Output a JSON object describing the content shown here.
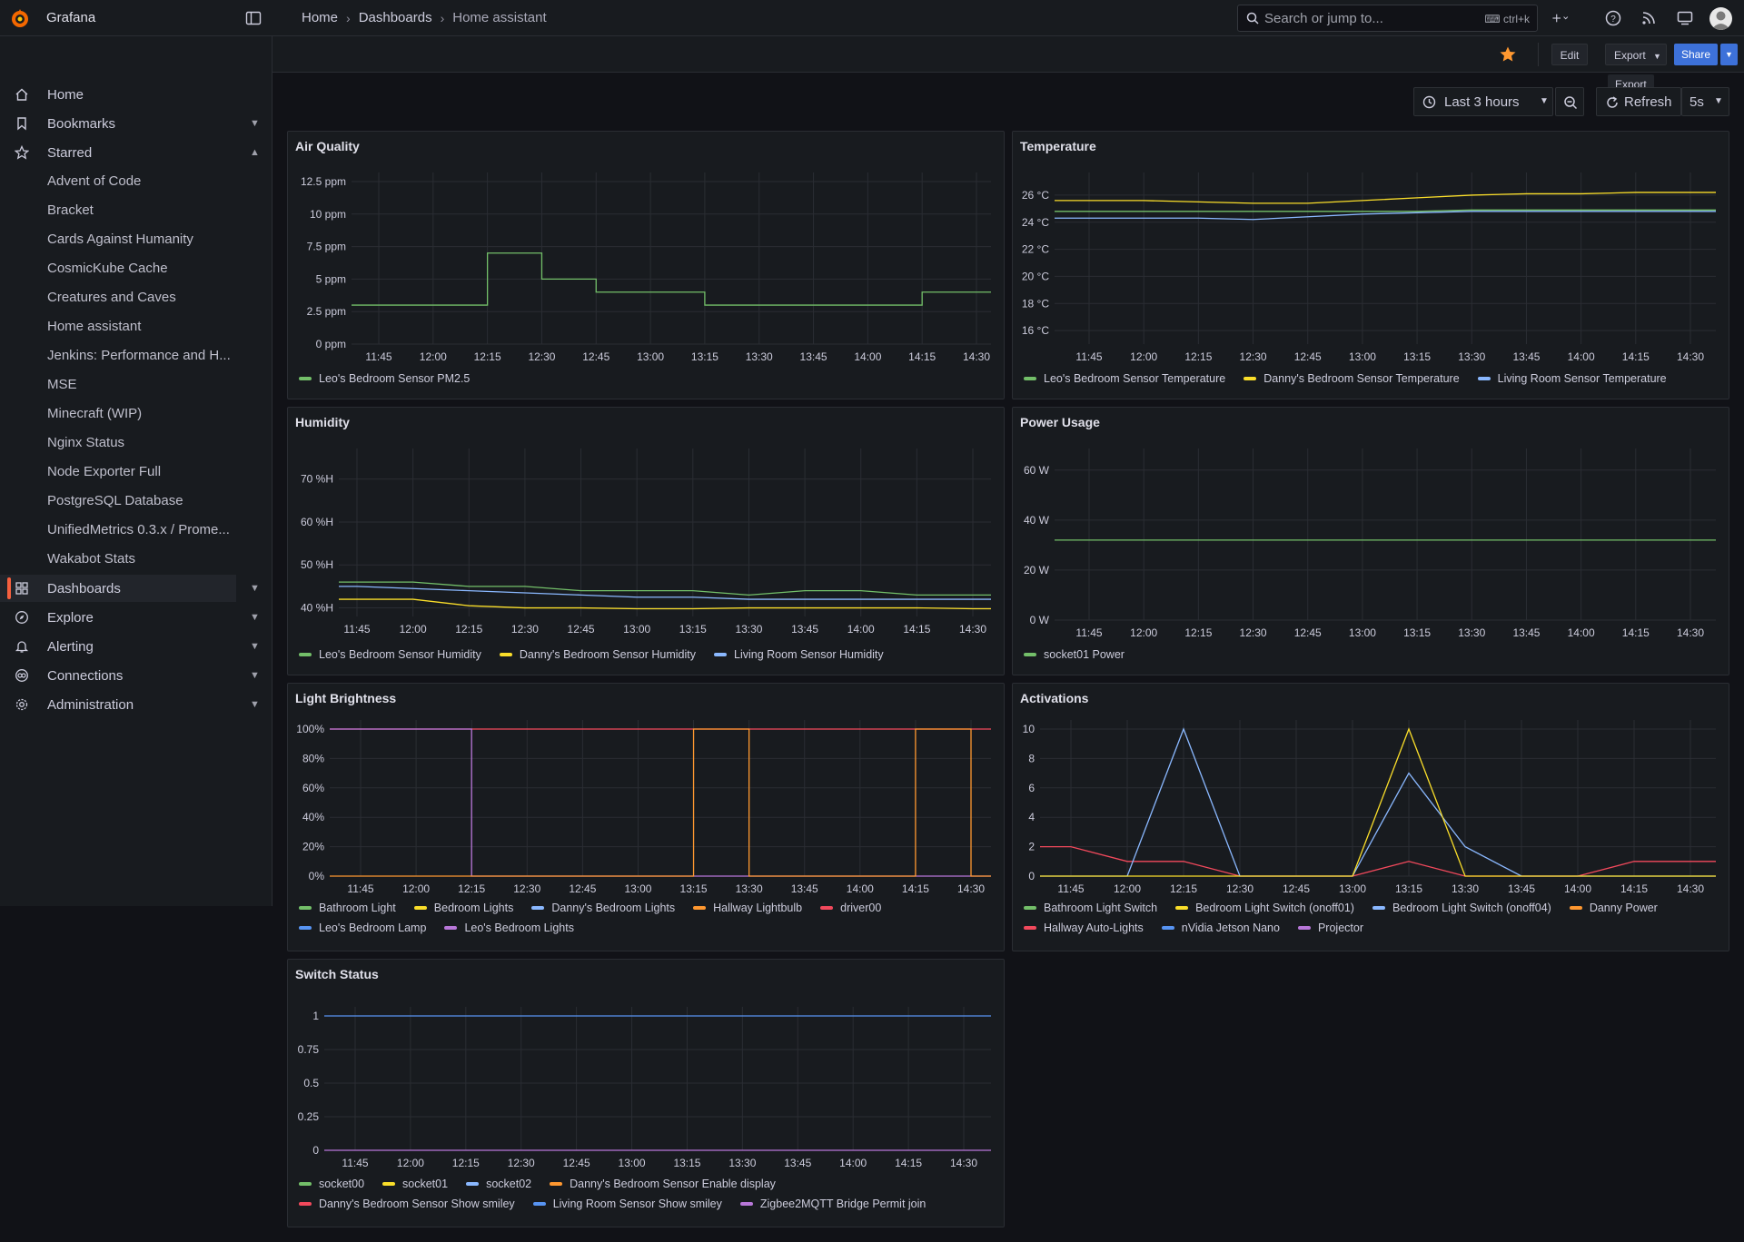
{
  "app": {
    "name": "Grafana",
    "search_placeholder": "Search or jump to...",
    "search_shortcut": "ctrl+k"
  },
  "breadcrumb": [
    "Home",
    "Dashboards",
    "Home assistant"
  ],
  "toolbar": {
    "edit": "Edit",
    "export": "Export",
    "share": "Share",
    "tooltip": "Export",
    "time_range": "Last 3 hours",
    "refresh": "Refresh",
    "interval": "5s"
  },
  "sidebar": {
    "top_items": [
      {
        "label": "Home",
        "icon": "home-icon"
      },
      {
        "label": "Bookmarks",
        "icon": "bookmark-icon"
      },
      {
        "label": "Starred",
        "icon": "star-icon"
      }
    ],
    "starred": [
      "Advent of Code",
      "Bracket",
      "Cards Against Humanity",
      "CosmicKube Cache",
      "Creatures and Caves",
      "Home assistant",
      "Jenkins: Performance and H...",
      "MSE",
      "Minecraft (WIP)",
      "Nginx Status",
      "Node Exporter Full",
      "PostgreSQL Database",
      "UnifiedMetrics 0.3.x / Prome...",
      "Wakabot Stats"
    ],
    "bottom_items": [
      {
        "label": "Dashboards",
        "icon": "dashboards-icon"
      },
      {
        "label": "Explore",
        "icon": "compass-icon"
      },
      {
        "label": "Alerting",
        "icon": "bell-icon"
      },
      {
        "label": "Connections",
        "icon": "connections-icon"
      },
      {
        "label": "Administration",
        "icon": "gear-icon"
      }
    ]
  },
  "colors": {
    "green": "#73bf69",
    "yellow": "#fade2a",
    "lightblue": "#8ab8ff",
    "orange": "#ff9830",
    "red": "#f2495c",
    "blue": "#5794f2",
    "purple": "#b877d9"
  },
  "time_ticks": [
    "11:45",
    "12:00",
    "12:15",
    "12:30",
    "12:45",
    "13:00",
    "13:15",
    "13:30",
    "13:45",
    "14:00",
    "14:15",
    "14:30"
  ],
  "panels": {
    "air_quality": {
      "title": "Air Quality",
      "y_ticks": [
        "12.5 ppm",
        "10 ppm",
        "7.5 ppm",
        "5 ppm",
        "2.5 ppm",
        "0 ppm"
      ],
      "legend": [
        {
          "name": "Leo's Bedroom Sensor PM2.5",
          "color": "#73bf69"
        }
      ]
    },
    "temperature": {
      "title": "Temperature",
      "y_ticks": [
        "26 °C",
        "24 °C",
        "22 °C",
        "20 °C",
        "18 °C",
        "16 °C"
      ],
      "legend": [
        {
          "name": "Leo's Bedroom Sensor Temperature",
          "color": "#73bf69"
        },
        {
          "name": "Danny's Bedroom Sensor Temperature",
          "color": "#fade2a"
        },
        {
          "name": "Living Room Sensor Temperature",
          "color": "#8ab8ff"
        }
      ]
    },
    "humidity": {
      "title": "Humidity",
      "y_ticks": [
        "70 %H",
        "60 %H",
        "50 %H",
        "40 %H"
      ],
      "legend": [
        {
          "name": "Leo's Bedroom Sensor Humidity",
          "color": "#73bf69"
        },
        {
          "name": "Danny's Bedroom Sensor Humidity",
          "color": "#fade2a"
        },
        {
          "name": "Living Room Sensor Humidity",
          "color": "#8ab8ff"
        }
      ]
    },
    "power": {
      "title": "Power Usage",
      "y_ticks": [
        "60 W",
        "40 W",
        "20 W",
        "0 W"
      ],
      "legend": [
        {
          "name": "socket01 Power",
          "color": "#73bf69"
        }
      ]
    },
    "light": {
      "title": "Light Brightness",
      "y_ticks": [
        "100%",
        "80%",
        "60%",
        "40%",
        "20%",
        "0%"
      ],
      "legend": [
        {
          "name": "Bathroom Light",
          "color": "#73bf69"
        },
        {
          "name": "Bedroom Lights",
          "color": "#fade2a"
        },
        {
          "name": "Danny's Bedroom Lights",
          "color": "#8ab8ff"
        },
        {
          "name": "Hallway Lightbulb",
          "color": "#ff9830"
        },
        {
          "name": "driver00",
          "color": "#f2495c"
        },
        {
          "name": "Leo's Bedroom Lamp",
          "color": "#5794f2"
        },
        {
          "name": "Leo's Bedroom Lights",
          "color": "#b877d9"
        }
      ]
    },
    "activations": {
      "title": "Activations",
      "y_ticks": [
        "10",
        "8",
        "6",
        "4",
        "2",
        "0"
      ],
      "legend": [
        {
          "name": "Bathroom Light Switch",
          "color": "#73bf69"
        },
        {
          "name": "Bedroom Light Switch (onoff01)",
          "color": "#fade2a"
        },
        {
          "name": "Bedroom Light Switch (onoff04)",
          "color": "#8ab8ff"
        },
        {
          "name": "Danny Power",
          "color": "#ff9830"
        },
        {
          "name": "Hallway Auto-Lights",
          "color": "#f2495c"
        },
        {
          "name": "nVidia Jetson Nano",
          "color": "#5794f2"
        },
        {
          "name": "Projector",
          "color": "#b877d9"
        }
      ]
    },
    "switch": {
      "title": "Switch Status",
      "y_ticks": [
        "1",
        "0.75",
        "0.5",
        "0.25",
        "0"
      ],
      "legend": [
        {
          "name": "socket00",
          "color": "#73bf69"
        },
        {
          "name": "socket01",
          "color": "#fade2a"
        },
        {
          "name": "socket02",
          "color": "#8ab8ff"
        },
        {
          "name": "Danny's Bedroom Sensor Enable display",
          "color": "#ff9830"
        },
        {
          "name": "Danny's Bedroom Sensor Show smiley",
          "color": "#f2495c"
        },
        {
          "name": "Living Room Sensor Show smiley",
          "color": "#5794f2"
        },
        {
          "name": "Zigbee2MQTT Bridge Permit join",
          "color": "#b877d9"
        }
      ]
    }
  },
  "chart_data": [
    {
      "type": "line",
      "title": "Air Quality",
      "ylabel": "ppm",
      "ylim": [
        0,
        12.5
      ],
      "categories": [
        "11:45",
        "12:00",
        "12:15",
        "12:30",
        "12:45",
        "13:00",
        "13:15",
        "13:30",
        "13:45",
        "14:00",
        "14:15",
        "14:30"
      ],
      "series": [
        {
          "name": "Leo's Bedroom Sensor PM2.5",
          "values": [
            3,
            3,
            7,
            5,
            4,
            4,
            3,
            3,
            3,
            3,
            4,
            4
          ]
        }
      ]
    },
    {
      "type": "line",
      "title": "Temperature",
      "ylabel": "°C",
      "ylim": [
        15,
        27
      ],
      "categories": [
        "11:45",
        "12:00",
        "12:15",
        "12:30",
        "12:45",
        "13:00",
        "13:15",
        "13:30",
        "13:45",
        "14:00",
        "14:15",
        "14:30"
      ],
      "series": [
        {
          "name": "Leo's Bedroom Sensor Temperature",
          "values": [
            24.8,
            24.8,
            24.8,
            24.8,
            24.8,
            24.8,
            24.8,
            24.9,
            24.9,
            24.9,
            24.9,
            24.9
          ]
        },
        {
          "name": "Danny's Bedroom Sensor Temperature",
          "values": [
            25.6,
            25.6,
            25.5,
            25.4,
            25.4,
            25.6,
            25.8,
            26.0,
            26.1,
            26.1,
            26.2,
            26.2
          ]
        },
        {
          "name": "Living Room Sensor Temperature",
          "values": [
            24.3,
            24.3,
            24.3,
            24.2,
            24.4,
            24.6,
            24.7,
            24.8,
            24.8,
            24.8,
            24.8,
            24.8
          ]
        }
      ]
    },
    {
      "type": "line",
      "title": "Humidity",
      "ylabel": "%H",
      "ylim": [
        38,
        75
      ],
      "categories": [
        "11:45",
        "12:00",
        "12:15",
        "12:30",
        "12:45",
        "13:00",
        "13:15",
        "13:30",
        "13:45",
        "14:00",
        "14:15",
        "14:30"
      ],
      "series": [
        {
          "name": "Leo's Bedroom Sensor Humidity",
          "values": [
            46,
            46,
            45,
            45,
            44,
            44,
            44,
            43,
            44,
            44,
            43,
            43
          ]
        },
        {
          "name": "Danny's Bedroom Sensor Humidity",
          "values": [
            42,
            42,
            40.5,
            40,
            40,
            39.8,
            39.8,
            40,
            40,
            40,
            40,
            39.8
          ]
        },
        {
          "name": "Living Room Sensor Humidity",
          "values": [
            45,
            44.5,
            44,
            43.5,
            43,
            42.5,
            42.5,
            42,
            42,
            42,
            42,
            42
          ]
        }
      ]
    },
    {
      "type": "line",
      "title": "Power Usage",
      "ylabel": "W",
      "ylim": [
        0,
        65
      ],
      "categories": [
        "11:45",
        "12:00",
        "12:15",
        "12:30",
        "12:45",
        "13:00",
        "13:15",
        "13:30",
        "13:45",
        "14:00",
        "14:15",
        "14:30"
      ],
      "series": [
        {
          "name": "socket01 Power",
          "values": [
            32,
            32,
            32,
            32,
            32,
            32,
            32,
            32,
            32,
            32,
            32,
            32
          ]
        }
      ]
    },
    {
      "type": "line",
      "title": "Light Brightness",
      "ylabel": "%",
      "ylim": [
        0,
        100
      ],
      "categories": [
        "11:45",
        "12:00",
        "12:15",
        "12:30",
        "12:45",
        "13:00",
        "13:15",
        "13:30",
        "13:45",
        "14:00",
        "14:15",
        "14:30"
      ],
      "series": [
        {
          "name": "driver00",
          "values": [
            100,
            100,
            100,
            100,
            100,
            100,
            100,
            100,
            100,
            100,
            100,
            100
          ]
        },
        {
          "name": "Leo's Bedroom Lights",
          "values": [
            100,
            100,
            0,
            0,
            0,
            0,
            0,
            0,
            0,
            0,
            0,
            0
          ]
        },
        {
          "name": "Hallway Lightbulb",
          "values": [
            0,
            0,
            0,
            0,
            0,
            0,
            100,
            0,
            0,
            0,
            100,
            0
          ]
        }
      ]
    },
    {
      "type": "line",
      "title": "Activations",
      "ylim": [
        0,
        10
      ],
      "categories": [
        "11:45",
        "12:00",
        "12:15",
        "12:30",
        "12:45",
        "13:00",
        "13:15",
        "13:30",
        "13:45",
        "14:00",
        "14:15",
        "14:30"
      ],
      "series": [
        {
          "name": "Hallway Auto-Lights",
          "values": [
            2,
            1,
            1,
            0,
            0,
            0,
            1,
            0,
            0,
            0,
            1,
            1
          ]
        },
        {
          "name": "Bedroom Light Switch (onoff04)",
          "values": [
            0,
            0,
            10,
            0,
            0,
            0,
            7,
            2,
            0,
            0,
            0,
            0
          ]
        },
        {
          "name": "Bedroom Light Switch (onoff01)",
          "values": [
            0,
            0,
            0,
            0,
            0,
            0,
            10,
            0,
            0,
            0,
            0,
            0
          ]
        }
      ]
    },
    {
      "type": "line",
      "title": "Switch Status",
      "ylim": [
        0,
        1
      ],
      "categories": [
        "11:45",
        "12:00",
        "12:15",
        "12:30",
        "12:45",
        "13:00",
        "13:15",
        "13:30",
        "13:45",
        "14:00",
        "14:15",
        "14:30"
      ],
      "series": [
        {
          "name": "Living Room Sensor Show smiley",
          "values": [
            1,
            1,
            1,
            1,
            1,
            1,
            1,
            1,
            1,
            1,
            1,
            1
          ]
        },
        {
          "name": "Zigbee2MQTT Bridge Permit join",
          "values": [
            0,
            0,
            0,
            0,
            0,
            0,
            0,
            0,
            0,
            0,
            0,
            0
          ]
        }
      ]
    }
  ]
}
